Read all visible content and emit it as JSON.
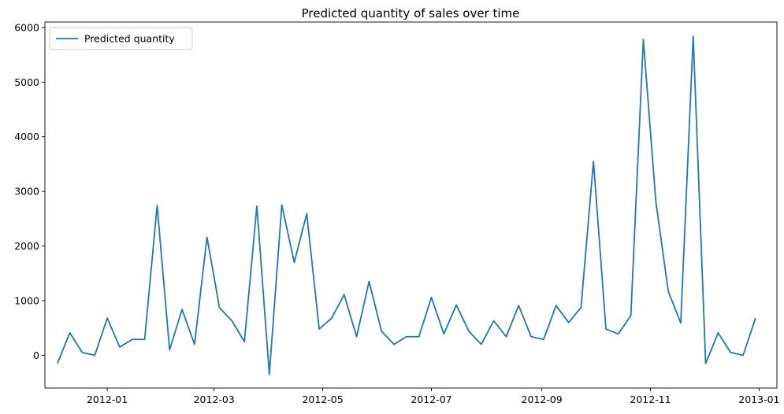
{
  "chart_data": {
    "type": "line",
    "title": "Predicted quantity of sales over time",
    "xlabel": "",
    "ylabel": "",
    "legend": {
      "position": "top-left",
      "entries": [
        "Predicted quantity"
      ]
    },
    "grid": false,
    "line_color": "#1f77b4",
    "xlim": [
      "2011-11-27",
      "2013-01-11"
    ],
    "ylim": [
      -600,
      6100
    ],
    "x_ticks": [
      "2012-01",
      "2012-03",
      "2012-05",
      "2012-07",
      "2012-09",
      "2012-11",
      "2013-01"
    ],
    "y_ticks": [
      "0",
      "1000",
      "2000",
      "3000",
      "4000",
      "5000",
      "6000"
    ],
    "series": [
      {
        "name": "Predicted quantity",
        "x": [
          "2011-12-04",
          "2011-12-11",
          "2011-12-18",
          "2011-12-25",
          "2012-01-01",
          "2012-01-08",
          "2012-01-15",
          "2012-01-22",
          "2012-01-29",
          "2012-02-05",
          "2012-02-12",
          "2012-02-19",
          "2012-02-26",
          "2012-03-04",
          "2012-03-11",
          "2012-03-18",
          "2012-03-25",
          "2012-04-01",
          "2012-04-08",
          "2012-04-15",
          "2012-04-22",
          "2012-04-29",
          "2012-05-06",
          "2012-05-13",
          "2012-05-20",
          "2012-05-27",
          "2012-06-03",
          "2012-06-10",
          "2012-06-17",
          "2012-06-24",
          "2012-07-01",
          "2012-07-08",
          "2012-07-15",
          "2012-07-22",
          "2012-07-29",
          "2012-08-05",
          "2012-08-12",
          "2012-08-19",
          "2012-08-26",
          "2012-09-02",
          "2012-09-09",
          "2012-09-16",
          "2012-09-23",
          "2012-09-30",
          "2012-10-07",
          "2012-10-14",
          "2012-10-21",
          "2012-10-28",
          "2012-11-04",
          "2012-11-11",
          "2012-11-18",
          "2012-11-25",
          "2012-12-02",
          "2012-12-09",
          "2012-12-16",
          "2012-12-23",
          "2012-12-30"
        ],
        "values": [
          -150,
          410,
          50,
          0,
          680,
          150,
          290,
          290,
          2740,
          100,
          840,
          200,
          2160,
          870,
          630,
          250,
          2730,
          -350,
          2750,
          1700,
          2590,
          480,
          680,
          1110,
          340,
          1350,
          440,
          200,
          340,
          340,
          1060,
          390,
          920,
          440,
          200,
          630,
          340,
          910,
          340,
          290,
          910,
          600,
          870,
          3550,
          480,
          390,
          730,
          5780,
          2820,
          1170,
          590,
          5840,
          -150,
          410,
          50,
          0,
          680
        ]
      }
    ]
  }
}
